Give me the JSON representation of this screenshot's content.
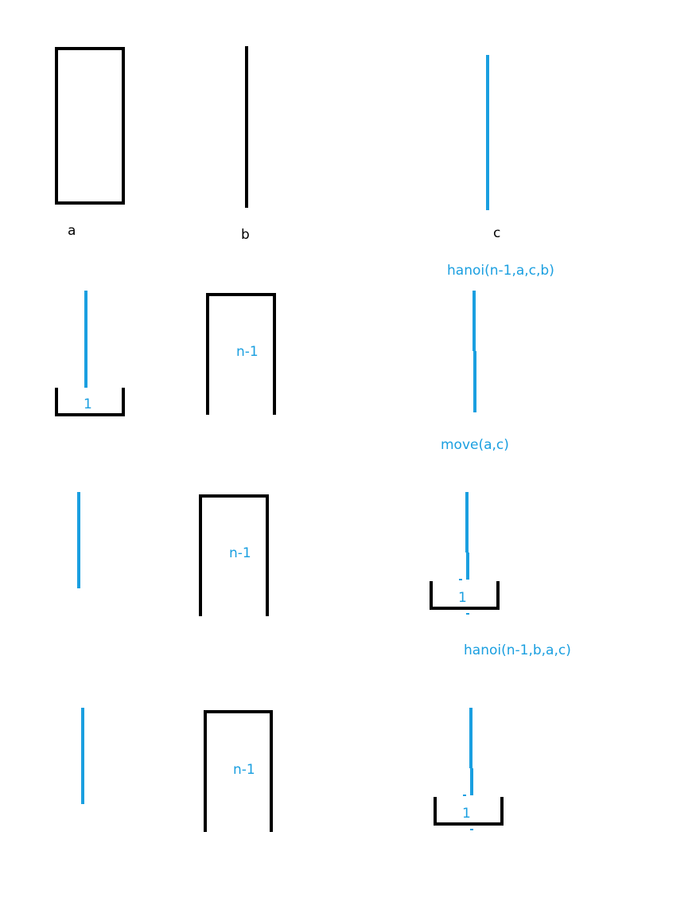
{
  "colors": {
    "black": "#000000",
    "blue": "#1a9fe0",
    "background": "#ffffff"
  },
  "pegs": {
    "a": "a",
    "b": "b",
    "c": "c"
  },
  "steps": {
    "step1": {
      "call": "hanoi(n-1,a,c,b)",
      "disk_top": "1",
      "disk_stack": "n-1"
    },
    "step2": {
      "call": "move(a,c)",
      "disk_stack": "n-1",
      "disk_top": "1"
    },
    "step3": {
      "call": "hanoi(n-1,b,a,c)",
      "disk_stack": "n-1",
      "disk_top": "1"
    }
  }
}
